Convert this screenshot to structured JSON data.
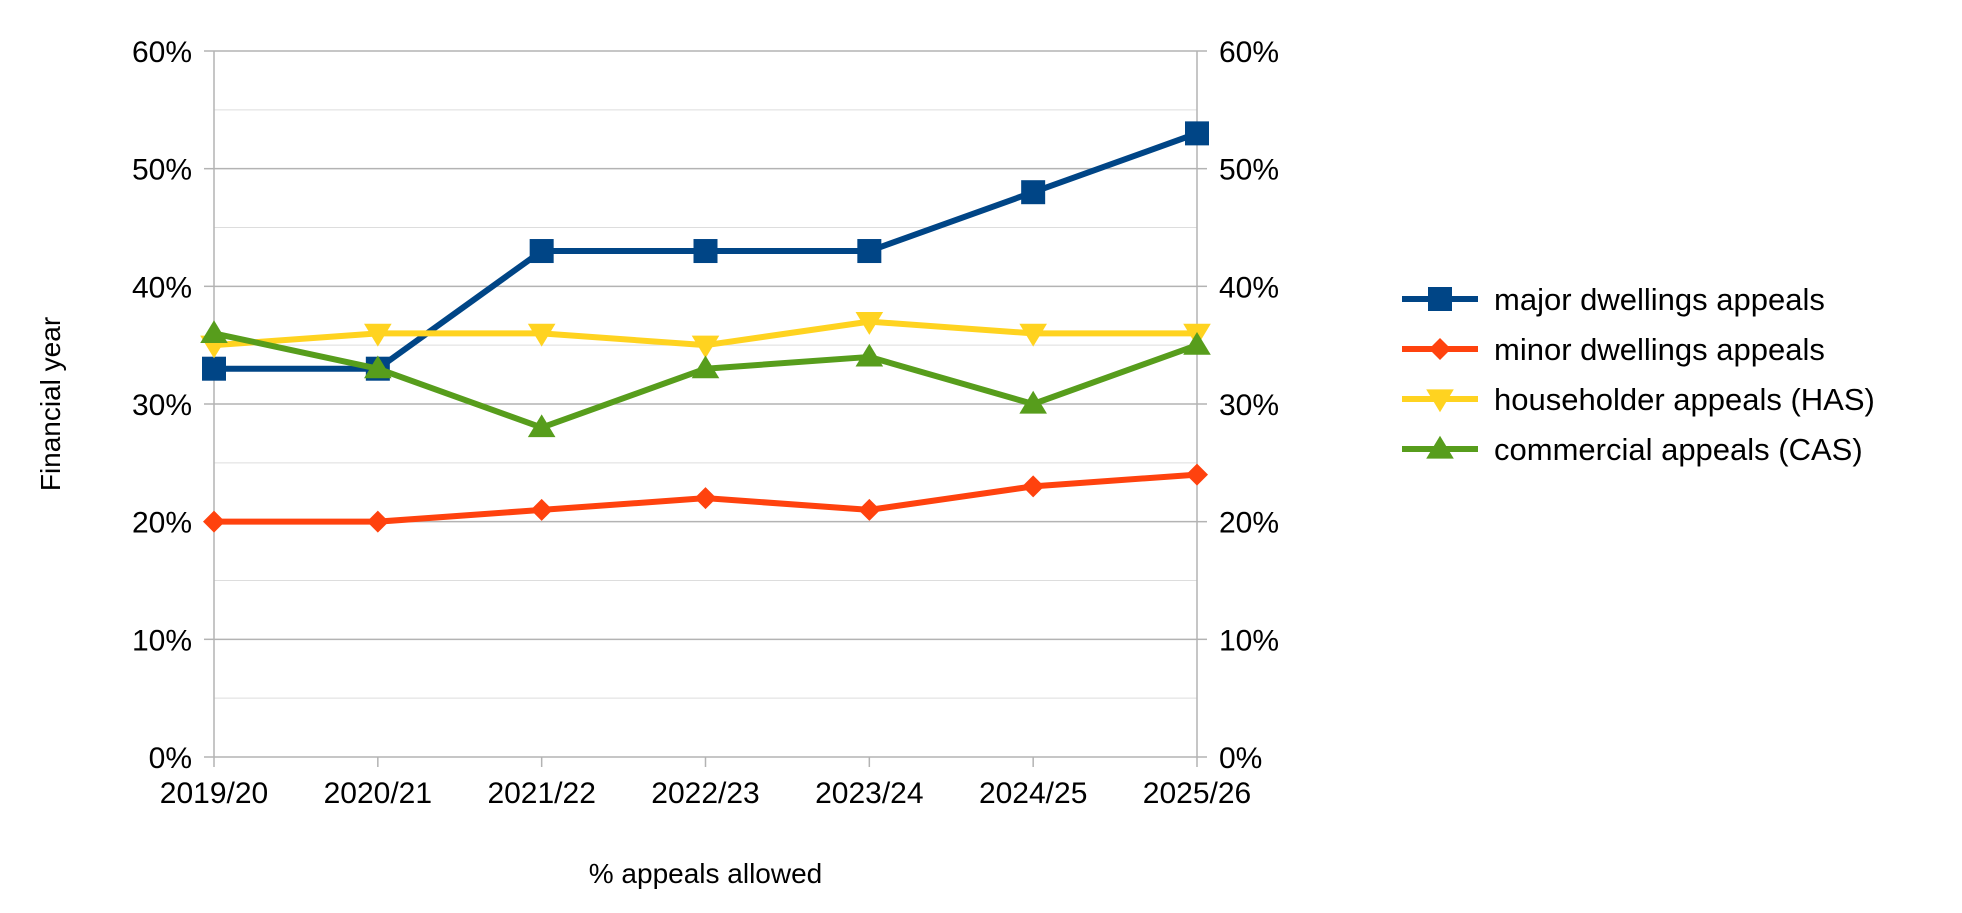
{
  "chart_data": {
    "type": "line",
    "title": "",
    "xlabel": "% appeals allowed",
    "ylabel": "Financial year",
    "categories": [
      "2019/20",
      "2020/21",
      "2021/22",
      "2022/23",
      "2023/24",
      "2024/25",
      "2025/26"
    ],
    "ylim": [
      0,
      60
    ],
    "y_ticks": [
      "0%",
      "10%",
      "20%",
      "30%",
      "40%",
      "50%",
      "60%"
    ],
    "secondary_y_axis": true,
    "grid": true,
    "legend_position": "right",
    "series": [
      {
        "name": "major dwellings appeals",
        "color": "#004586",
        "marker": "square",
        "values": [
          33,
          33,
          43,
          43,
          43,
          48,
          53
        ]
      },
      {
        "name": "minor dwellings appeals",
        "color": "#FF420E",
        "marker": "diamond",
        "values": [
          20,
          20,
          21,
          22,
          21,
          23,
          24
        ]
      },
      {
        "name": "householder appeals (HAS)",
        "color": "#FFD320",
        "marker": "triangle-down",
        "values": [
          35,
          36,
          36,
          35,
          37,
          36,
          36
        ]
      },
      {
        "name": "commercial appeals (CAS)",
        "color": "#579D1C",
        "marker": "triangle-up",
        "values": [
          36,
          33,
          28,
          33,
          34,
          30,
          35
        ]
      }
    ]
  }
}
